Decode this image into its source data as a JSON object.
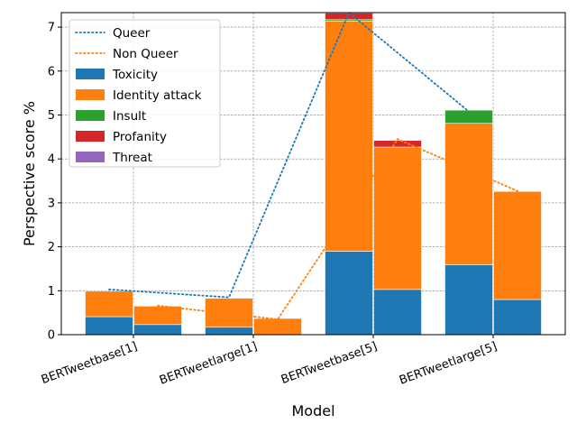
{
  "chart_data": {
    "type": "bar",
    "stacked": true,
    "xlabel": "Model",
    "ylabel": "Perspective score %",
    "ylim": [
      0,
      7.33
    ],
    "yticks": [
      0,
      1,
      2,
      3,
      4,
      5,
      6,
      7
    ],
    "grid": true,
    "legend_position": "upper-left",
    "categories": [
      "BERTweetbase[1]",
      "BERTweetlarge[1]",
      "BERTweetbase[5]",
      "BERTweetlarge[5]"
    ],
    "groups": [
      "Queer",
      "Non Queer"
    ],
    "series": [
      {
        "name": "Toxicity",
        "color": "#1f77b4",
        "queer": [
          0.41,
          0.17,
          1.9,
          1.59
        ],
        "non_queer": [
          0.23,
          0.0,
          1.03,
          0.8
        ]
      },
      {
        "name": "Identity attack",
        "color": "#ff7f0e",
        "queer": [
          0.58,
          0.66,
          5.24,
          3.22
        ],
        "non_queer": [
          0.42,
          0.37,
          3.24,
          2.46
        ]
      },
      {
        "name": "Insult",
        "color": "#2ca02c",
        "queer": [
          0.0,
          0.0,
          0.03,
          0.3
        ],
        "non_queer": [
          0.0,
          0.0,
          0.0,
          0.0
        ]
      },
      {
        "name": "Profanity",
        "color": "#d62728",
        "queer": [
          0.0,
          0.0,
          0.15,
          0.0
        ],
        "non_queer": [
          0.0,
          0.0,
          0.15,
          0.0
        ]
      },
      {
        "name": "Threat",
        "color": "#9467bd",
        "queer": [
          0.0,
          0.0,
          0.0,
          0.0
        ],
        "non_queer": [
          0.0,
          0.0,
          0.0,
          0.0
        ]
      }
    ],
    "lines": [
      {
        "name": "Queer",
        "color": "#1f77b4",
        "style": "dotted",
        "values": [
          1.03,
          0.85,
          7.33,
          5.08
        ]
      },
      {
        "name": "Non Queer",
        "color": "#ff7f0e",
        "style": "dotted",
        "values": [
          0.66,
          0.35,
          4.45,
          3.27
        ]
      }
    ]
  }
}
